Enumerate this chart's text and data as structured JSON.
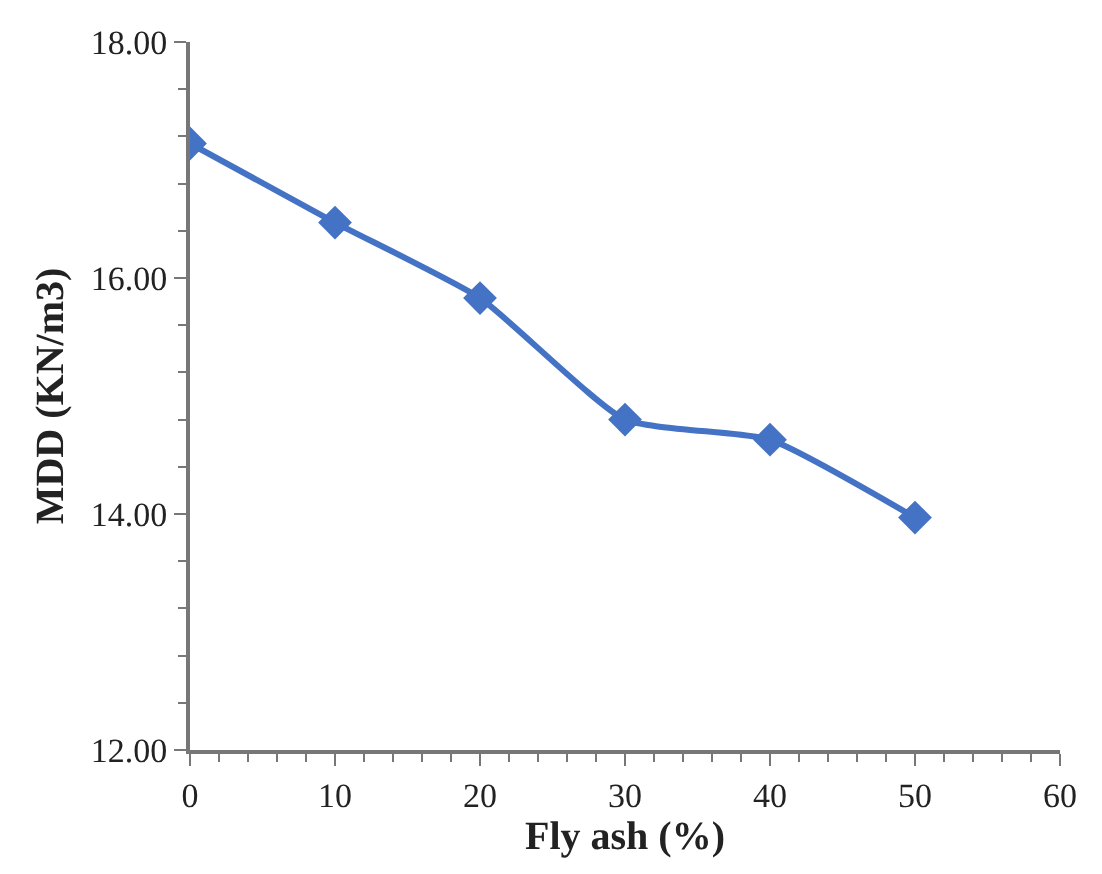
{
  "chart_data": {
    "type": "line",
    "xlabel": "Fly ash (%)",
    "ylabel": "MDD (KN/m3)",
    "x": [
      0,
      10,
      20,
      30,
      40,
      50
    ],
    "series": [
      {
        "color": "#4472c4",
        "values": [
          17.14,
          16.47,
          15.83,
          14.8,
          14.63,
          13.97
        ]
      }
    ],
    "xlim": [
      0,
      60
    ],
    "xticks": [
      0,
      10,
      20,
      30,
      40,
      50,
      60
    ],
    "ylim": [
      12,
      18
    ],
    "yticks": [
      {
        "value": 12,
        "label": "12.00"
      },
      {
        "value": 14,
        "label": "14.00"
      },
      {
        "value": 16,
        "label": "16.00"
      },
      {
        "value": 18,
        "label": "18.00"
      }
    ],
    "marker": "diamond"
  }
}
